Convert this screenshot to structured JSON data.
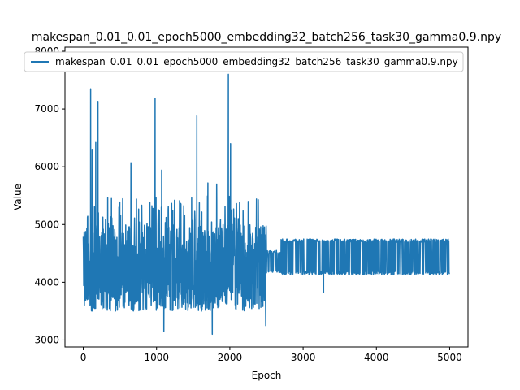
{
  "chart_data": {
    "type": "line",
    "title": "makespan_0.01_0.01_epoch5000_embedding32_batch256_task30_gamma0.9.npy",
    "xlabel": "Epoch",
    "ylabel": "Value",
    "xlim": [
      -250,
      5250
    ],
    "ylim": [
      2880,
      8070
    ],
    "xticks": [
      0,
      1000,
      2000,
      3000,
      4000,
      5000
    ],
    "yticks": [
      3000,
      4000,
      5000,
      6000,
      7000,
      8000
    ],
    "legend_position": "top-right",
    "grid": false,
    "line_color": "#1f77b4",
    "series": [
      {
        "name": "makespan_0.01_0.01_epoch5000_embedding32_batch256_task30_gamma0.9.npy",
        "segments": [
          {
            "x_start": 0,
            "x_end": 2500,
            "pattern": "noisy",
            "base_low": 3500,
            "base_high": 5000
          },
          {
            "x_start": 2500,
            "x_end": 2700,
            "pattern": "band",
            "base_low": 4150,
            "base_high": 4550
          },
          {
            "x_start": 2700,
            "x_end": 5000,
            "pattern": "band",
            "base_low": 4130,
            "base_high": 4750
          }
        ],
        "spikes": [
          {
            "x": 100,
            "y": 7350
          },
          {
            "x": 200,
            "y": 7130
          },
          {
            "x": 170,
            "y": 6420
          },
          {
            "x": 120,
            "y": 6300
          },
          {
            "x": 650,
            "y": 6070
          },
          {
            "x": 980,
            "y": 7180
          },
          {
            "x": 1070,
            "y": 5940
          },
          {
            "x": 1550,
            "y": 6880
          },
          {
            "x": 1980,
            "y": 7600
          },
          {
            "x": 2010,
            "y": 6400
          },
          {
            "x": 1700,
            "y": 5720
          },
          {
            "x": 1820,
            "y": 5700
          },
          {
            "x": 1100,
            "y": 3150
          },
          {
            "x": 1760,
            "y": 3100
          },
          {
            "x": 2490,
            "y": 3250
          },
          {
            "x": 3280,
            "y": 3820
          }
        ]
      }
    ]
  }
}
